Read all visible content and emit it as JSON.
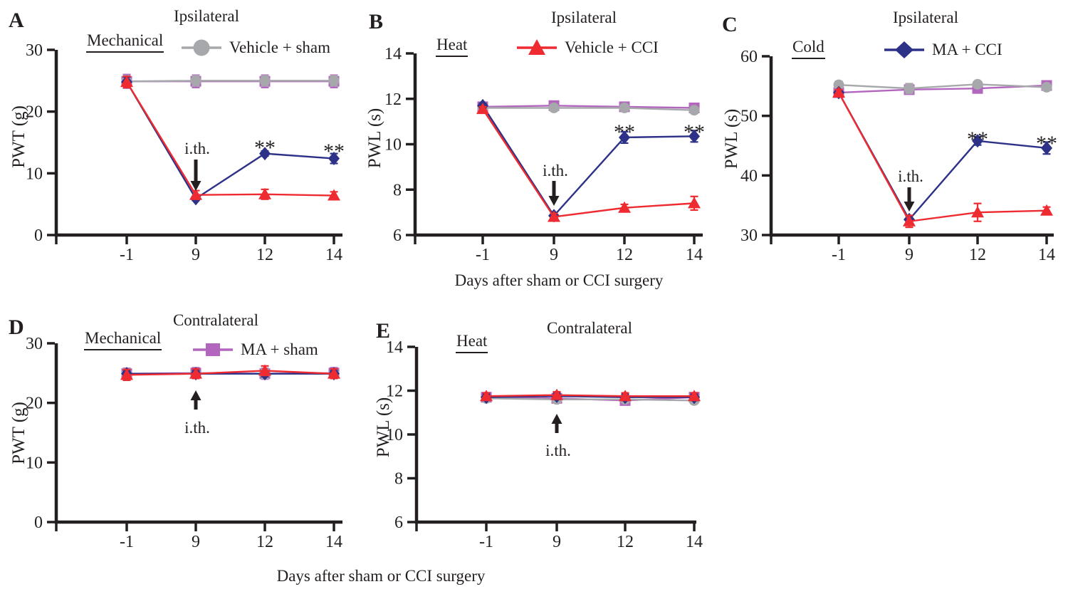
{
  "shared": {
    "xlabel": "Days after sham or CCI surgery",
    "ith_label": "i.th.",
    "sig_label": "**",
    "axis_color": "#231f20",
    "background": "#ffffff"
  },
  "groups": [
    {
      "id": "vehicle_sham",
      "label": "Vehicle + sham",
      "color": "#a6a8ab",
      "marker": "circle"
    },
    {
      "id": "vehicle_cci",
      "label": "Vehicle + CCI",
      "color": "#ee2b31",
      "marker": "triangle"
    },
    {
      "id": "ma_cci",
      "label": "MA + CCI",
      "color": "#2d3188",
      "marker": "diamond"
    },
    {
      "id": "ma_sham",
      "label": "MA + sham",
      "color": "#b266be",
      "marker": "square"
    }
  ],
  "chart_data": [
    {
      "type": "line",
      "panel": "A",
      "title": "Ipsilateral",
      "stimulus": "Mechanical",
      "ylabel": "PWT (g)",
      "xlabel": "",
      "ylim": [
        0,
        30
      ],
      "yticks": [
        0,
        10,
        20,
        30
      ],
      "x": [
        -1,
        9,
        12,
        14
      ],
      "legend_group": "vehicle_sham",
      "grid": false,
      "series": [
        {
          "name": "MA + sham",
          "group": "ma_sham",
          "values": [
            24.9,
            24.9,
            24.9,
            24.9
          ],
          "err": [
            1.1,
            1.0,
            1.0,
            1.0
          ]
        },
        {
          "name": "Vehicle + sham",
          "group": "vehicle_sham",
          "values": [
            24.9,
            25.0,
            25.0,
            25.0
          ],
          "err": [
            0.9,
            0.8,
            0.8,
            0.8
          ]
        },
        {
          "name": "MA + CCI",
          "group": "ma_cci",
          "values": [
            24.8,
            5.9,
            13.2,
            12.4
          ],
          "err": [
            0.8,
            0.3,
            0.4,
            0.8
          ]
        },
        {
          "name": "Vehicle + CCI",
          "group": "vehicle_cci",
          "values": [
            24.8,
            6.5,
            6.6,
            6.4
          ],
          "err": [
            0.9,
            0.7,
            0.8,
            0.6
          ]
        }
      ],
      "ith_arrow": {
        "x": 9,
        "direction": "down",
        "label": "i.th."
      },
      "significance": [
        {
          "x": 12,
          "label": "**"
        },
        {
          "x": 14,
          "label": "**"
        }
      ]
    },
    {
      "type": "line",
      "panel": "B",
      "title": "Ipsilateral",
      "stimulus": "Heat",
      "ylabel": "PWL (s)",
      "xlabel": "Days after sham or CCI surgery",
      "ylim": [
        6,
        14
      ],
      "yticks": [
        6,
        8,
        10,
        12,
        14
      ],
      "x": [
        -1,
        9,
        12,
        14
      ],
      "legend_group": "vehicle_cci",
      "grid": false,
      "series": [
        {
          "name": "MA + sham",
          "group": "ma_sham",
          "values": [
            11.65,
            11.7,
            11.65,
            11.6
          ],
          "err": [
            0.15,
            0.15,
            0.15,
            0.15
          ]
        },
        {
          "name": "Vehicle + sham",
          "group": "vehicle_sham",
          "values": [
            11.6,
            11.6,
            11.6,
            11.5
          ],
          "err": [
            0.12,
            0.12,
            0.12,
            0.12
          ]
        },
        {
          "name": "MA + CCI",
          "group": "ma_cci",
          "values": [
            11.7,
            6.85,
            10.3,
            10.35
          ],
          "err": [
            0.1,
            0.1,
            0.25,
            0.25
          ]
        },
        {
          "name": "Vehicle + CCI",
          "group": "vehicle_cci",
          "values": [
            11.55,
            6.8,
            7.2,
            7.4
          ],
          "err": [
            0.1,
            0.15,
            0.15,
            0.3
          ]
        }
      ],
      "ith_arrow": {
        "x": 9,
        "direction": "down",
        "label": "i.th."
      },
      "significance": [
        {
          "x": 12,
          "label": "**"
        },
        {
          "x": 14,
          "label": "**"
        }
      ]
    },
    {
      "type": "line",
      "panel": "C",
      "title": "Ipsilateral",
      "stimulus": "Cold",
      "ylabel": "PWL (s)",
      "xlabel": "",
      "ylim": [
        30,
        60
      ],
      "yticks": [
        30,
        40,
        50,
        60
      ],
      "x": [
        -1,
        9,
        12,
        14
      ],
      "legend_group": "ma_cci",
      "grid": false,
      "series": [
        {
          "name": "MA + sham",
          "group": "ma_sham",
          "values": [
            53.9,
            54.4,
            54.6,
            55.1
          ],
          "err": [
            0.5,
            0.5,
            0.5,
            0.5
          ]
        },
        {
          "name": "Vehicle + sham",
          "group": "vehicle_sham",
          "values": [
            55.2,
            54.6,
            55.3,
            54.8
          ],
          "err": [
            0.6,
            0.8,
            0.5,
            0.5
          ]
        },
        {
          "name": "MA + CCI",
          "group": "ma_cci",
          "values": [
            53.9,
            32.6,
            45.8,
            44.6
          ],
          "err": [
            0.5,
            0.6,
            0.7,
            1.0
          ]
        },
        {
          "name": "Vehicle + CCI",
          "group": "vehicle_cci",
          "values": [
            53.9,
            32.3,
            33.8,
            34.1
          ],
          "err": [
            0.5,
            1.0,
            1.5,
            0.6
          ]
        }
      ],
      "ith_arrow": {
        "x": 9,
        "direction": "down",
        "label": "i.th."
      },
      "significance": [
        {
          "x": 12,
          "label": "**"
        },
        {
          "x": 14,
          "label": "**"
        }
      ]
    },
    {
      "type": "line",
      "panel": "D",
      "title": "Contralateral",
      "stimulus": "Mechanical",
      "ylabel": "PWT (g)",
      "xlabel": "",
      "ylim": [
        0,
        30
      ],
      "yticks": [
        0,
        10,
        20,
        30
      ],
      "x": [
        -1,
        9,
        12,
        14
      ],
      "legend_group": "ma_sham",
      "grid": false,
      "series": [
        {
          "name": "MA + sham",
          "group": "ma_sham",
          "values": [
            24.9,
            25.0,
            24.9,
            25.0
          ],
          "err": [
            0.9,
            0.9,
            0.9,
            0.9
          ]
        },
        {
          "name": "Vehicle + sham",
          "group": "vehicle_sham",
          "values": [
            24.9,
            24.9,
            24.9,
            24.9
          ],
          "err": [
            0.8,
            0.8,
            0.8,
            0.8
          ]
        },
        {
          "name": "MA + CCI",
          "group": "ma_cci",
          "values": [
            24.9,
            24.9,
            24.9,
            24.9
          ],
          "err": [
            0.5,
            0.5,
            0.5,
            0.5
          ]
        },
        {
          "name": "Vehicle + CCI",
          "group": "vehicle_cci",
          "values": [
            24.7,
            24.9,
            25.4,
            24.9
          ],
          "err": [
            0.9,
            0.8,
            0.8,
            0.8
          ]
        }
      ],
      "ith_arrow": {
        "x": 9,
        "direction": "up",
        "label": "i.th."
      },
      "significance": []
    },
    {
      "type": "line",
      "panel": "E",
      "title": "Contralateral",
      "stimulus": "Heat",
      "ylabel": "PWL (s)",
      "xlabel": "",
      "ylim": [
        6,
        14
      ],
      "yticks": [
        6,
        8,
        10,
        12,
        14
      ],
      "x": [
        -1,
        9,
        12,
        14
      ],
      "legend_group": "",
      "grid": false,
      "series": [
        {
          "name": "MA + sham",
          "group": "ma_sham",
          "values": [
            11.7,
            11.65,
            11.55,
            11.7
          ],
          "err": [
            0.15,
            0.15,
            0.15,
            0.15
          ]
        },
        {
          "name": "Vehicle + sham",
          "group": "vehicle_sham",
          "values": [
            11.65,
            11.6,
            11.6,
            11.55
          ],
          "err": [
            0.12,
            0.12,
            0.12,
            0.12
          ]
        },
        {
          "name": "MA + CCI",
          "group": "ma_cci",
          "values": [
            11.7,
            11.75,
            11.7,
            11.7
          ],
          "err": [
            0.15,
            0.15,
            0.15,
            0.15
          ]
        },
        {
          "name": "Vehicle + CCI",
          "group": "vehicle_cci",
          "values": [
            11.75,
            11.8,
            11.75,
            11.75
          ],
          "err": [
            0.15,
            0.15,
            0.15,
            0.15
          ]
        }
      ],
      "ith_arrow": {
        "x": 9,
        "direction": "up",
        "label": "i.th."
      },
      "significance": []
    }
  ]
}
